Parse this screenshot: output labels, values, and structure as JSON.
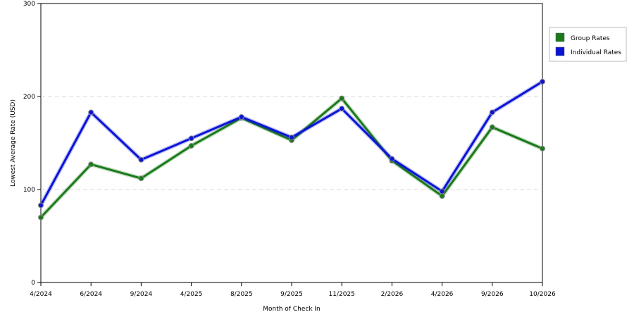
{
  "chart_data": {
    "type": "line",
    "categories": [
      "4/2024",
      "6/2024",
      "9/2024",
      "4/2025",
      "8/2025",
      "9/2025",
      "11/2025",
      "2/2026",
      "4/2026",
      "9/2026",
      "10/2026"
    ],
    "series": [
      {
        "name": "Group Rates",
        "color": "#1a7a1a",
        "values": [
          70,
          127,
          112,
          147,
          177,
          153,
          198,
          131,
          93,
          167,
          144
        ]
      },
      {
        "name": "Individual Rates",
        "color": "#0a14d6",
        "values": [
          83,
          183,
          132,
          155,
          178,
          156,
          187,
          133,
          98,
          183,
          216
        ]
      }
    ],
    "xlabel": "Month of Check In",
    "ylabel": "Lowest Average Rate (USD)",
    "ylim": [
      0,
      300
    ],
    "yticks": [
      0,
      100,
      200,
      300
    ],
    "gridlines": [
      100,
      200
    ],
    "legend_position": "top-right"
  }
}
